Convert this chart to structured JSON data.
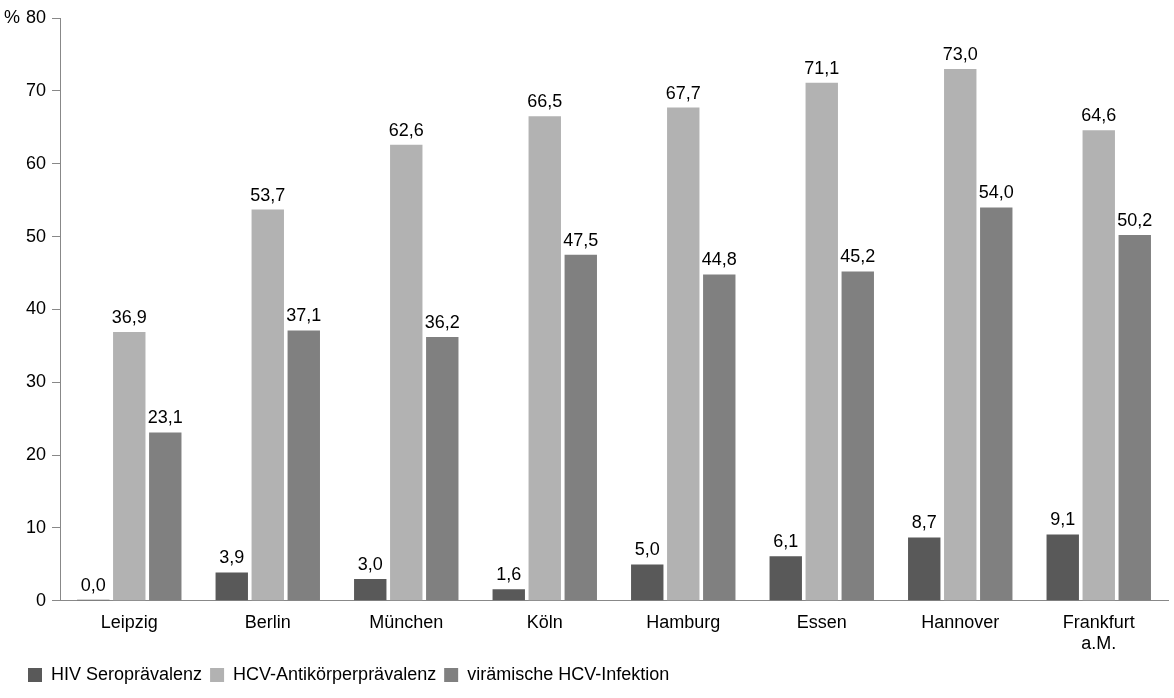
{
  "chart_data": {
    "type": "bar",
    "ylabel": "%",
    "categories": [
      "Leipzig",
      "Berlin",
      "München",
      "Köln",
      "Hamburg",
      "Essen",
      "Hannover",
      "Frankfurt a.M."
    ],
    "series": [
      {
        "name": "HIV Seroprävalenz",
        "color": "#595959",
        "values": [
          0.0,
          3.9,
          3.0,
          1.6,
          5.0,
          6.1,
          8.7,
          9.1
        ],
        "value_labels": [
          "0,0",
          "3,9",
          "3,0",
          "1,6",
          "5,0",
          "6,1",
          "8,7",
          "9,1"
        ]
      },
      {
        "name": "HCV-Antikörperprävalenz",
        "color": "#b2b2b2",
        "values": [
          36.9,
          53.7,
          62.6,
          66.5,
          67.7,
          71.1,
          73.0,
          64.6
        ],
        "value_labels": [
          "36,9",
          "53,7",
          "62,6",
          "66,5",
          "67,7",
          "71,1",
          "73,0",
          "64,6"
        ]
      },
      {
        "name": "virämische HCV-Infektion",
        "color": "#808080",
        "values": [
          23.1,
          37.1,
          36.2,
          47.5,
          44.8,
          45.2,
          54.0,
          50.2
        ],
        "value_labels": [
          "23,1",
          "37,1",
          "36,2",
          "47,5",
          "44,8",
          "45,2",
          "54,0",
          "50,2"
        ]
      }
    ],
    "ylim": [
      0,
      80
    ],
    "yticks": [
      0,
      10,
      20,
      30,
      40,
      50,
      60,
      70,
      80
    ],
    "grid": false,
    "legend": "bottom"
  }
}
